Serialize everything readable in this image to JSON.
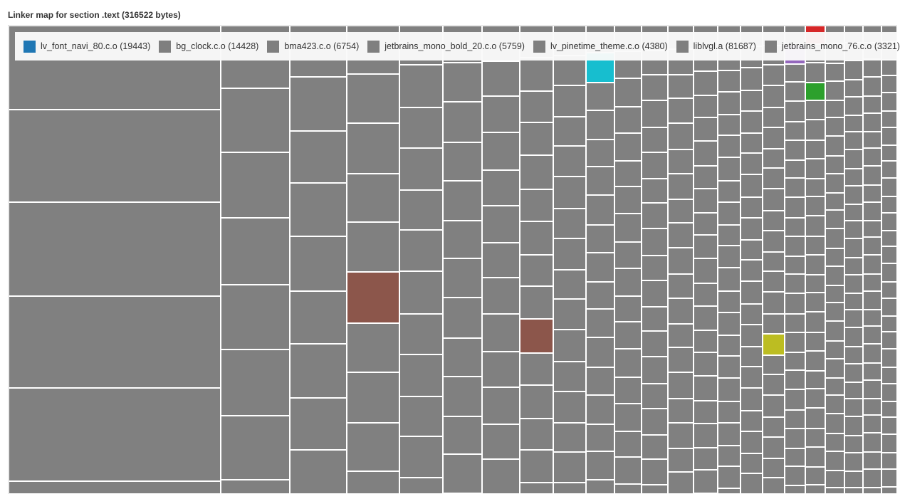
{
  "chart_data": {
    "type": "treemap",
    "title": "Linker map for section .text (316522 bytes)",
    "legend": [
      {
        "label": "lv_font_navi_80.c.o (19443)",
        "color": "#1f77b4"
      },
      {
        "label": "bg_clock.c.o (14428)",
        "color": "#7f7f7f"
      },
      {
        "label": "bma423.c.o (6754)",
        "color": "#7f7f7f"
      },
      {
        "label": "jetbrains_mono_bold_20.c.o (5759)",
        "color": "#7f7f7f"
      },
      {
        "label": "lv_pinetime_theme.c.o (4380)",
        "color": "#7f7f7f"
      },
      {
        "label": "liblvgl.a (81687)",
        "color": "#7f7f7f"
      },
      {
        "label": "jetbrains_mono_76.c.o (3321)",
        "color": "#7f7f7f"
      }
    ],
    "legend_placement": "top",
    "default_cell_color": "#808080",
    "highlight_colors": [
      "#8c564b",
      "#17becf",
      "#bcbd22",
      "#9467bd",
      "#d62728",
      "#2ca02c"
    ]
  }
}
